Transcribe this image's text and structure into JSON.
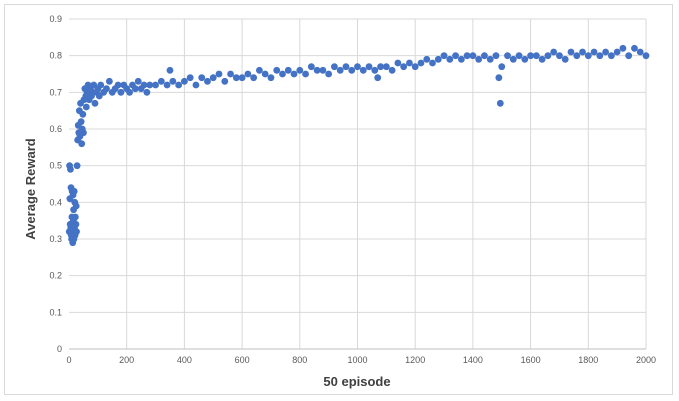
{
  "chart_data": {
    "type": "scatter",
    "title": "",
    "xlabel": "50 episode",
    "ylabel": "Average Reward",
    "xlim": [
      0,
      2000
    ],
    "ylim": [
      0,
      0.9
    ],
    "x_ticks": [
      "0",
      "200",
      "400",
      "600",
      "800",
      "1000",
      "1200",
      "1400",
      "1600",
      "1800",
      "2000"
    ],
    "y_ticks": [
      "0",
      "0.1",
      "0.2",
      "0.3",
      "0.4",
      "0.5",
      "0.6",
      "0.7",
      "0.8",
      "0.9"
    ],
    "grid": "vertical-and-horizontal",
    "legend": "none",
    "marker_color": "#4472c4",
    "series": [
      {
        "points": [
          [
            1,
            0.32
          ],
          [
            2,
            0.5
          ],
          [
            3,
            0.41
          ],
          [
            4,
            0.34
          ],
          [
            5,
            0.49
          ],
          [
            6,
            0.33
          ],
          [
            7,
            0.44
          ],
          [
            8,
            0.31
          ],
          [
            9,
            0.3
          ],
          [
            10,
            0.36
          ],
          [
            11,
            0.43
          ],
          [
            12,
            0.32
          ],
          [
            13,
            0.29
          ],
          [
            14,
            0.42
          ],
          [
            15,
            0.35
          ],
          [
            16,
            0.38
          ],
          [
            17,
            0.3
          ],
          [
            18,
            0.43
          ],
          [
            19,
            0.33
          ],
          [
            20,
            0.4
          ],
          [
            21,
            0.31
          ],
          [
            22,
            0.36
          ],
          [
            24,
            0.34
          ],
          [
            25,
            0.39
          ],
          [
            26,
            0.32
          ],
          [
            28,
            0.5
          ],
          [
            30,
            0.57
          ],
          [
            32,
            0.61
          ],
          [
            34,
            0.59
          ],
          [
            36,
            0.65
          ],
          [
            38,
            0.58
          ],
          [
            40,
            0.67
          ],
          [
            42,
            0.62
          ],
          [
            44,
            0.56
          ],
          [
            46,
            0.6
          ],
          [
            48,
            0.64
          ],
          [
            50,
            0.59
          ],
          [
            52,
            0.68
          ],
          [
            55,
            0.71
          ],
          [
            58,
            0.69
          ],
          [
            60,
            0.66
          ],
          [
            63,
            0.7
          ],
          [
            66,
            0.72
          ],
          [
            70,
            0.68
          ],
          [
            74,
            0.71
          ],
          [
            78,
            0.69
          ],
          [
            82,
            0.7
          ],
          [
            86,
            0.72
          ],
          [
            90,
            0.67
          ],
          [
            95,
            0.7
          ],
          [
            100,
            0.71
          ],
          [
            105,
            0.69
          ],
          [
            110,
            0.72
          ],
          [
            120,
            0.7
          ],
          [
            130,
            0.71
          ],
          [
            140,
            0.73
          ],
          [
            150,
            0.7
          ],
          [
            160,
            0.71
          ],
          [
            170,
            0.72
          ],
          [
            180,
            0.7
          ],
          [
            190,
            0.72
          ],
          [
            200,
            0.71
          ],
          [
            210,
            0.7
          ],
          [
            220,
            0.72
          ],
          [
            230,
            0.71
          ],
          [
            240,
            0.73
          ],
          [
            250,
            0.71
          ],
          [
            260,
            0.72
          ],
          [
            270,
            0.7
          ],
          [
            280,
            0.72
          ],
          [
            300,
            0.72
          ],
          [
            320,
            0.73
          ],
          [
            340,
            0.72
          ],
          [
            350,
            0.76
          ],
          [
            360,
            0.73
          ],
          [
            380,
            0.72
          ],
          [
            400,
            0.73
          ],
          [
            420,
            0.74
          ],
          [
            440,
            0.72
          ],
          [
            460,
            0.74
          ],
          [
            480,
            0.73
          ],
          [
            500,
            0.74
          ],
          [
            520,
            0.75
          ],
          [
            540,
            0.73
          ],
          [
            560,
            0.75
          ],
          [
            580,
            0.74
          ],
          [
            600,
            0.74
          ],
          [
            620,
            0.75
          ],
          [
            640,
            0.74
          ],
          [
            660,
            0.76
          ],
          [
            680,
            0.75
          ],
          [
            700,
            0.74
          ],
          [
            720,
            0.76
          ],
          [
            740,
            0.75
          ],
          [
            760,
            0.76
          ],
          [
            780,
            0.75
          ],
          [
            800,
            0.76
          ],
          [
            820,
            0.75
          ],
          [
            840,
            0.77
          ],
          [
            860,
            0.76
          ],
          [
            880,
            0.76
          ],
          [
            900,
            0.75
          ],
          [
            920,
            0.77
          ],
          [
            940,
            0.76
          ],
          [
            960,
            0.77
          ],
          [
            980,
            0.76
          ],
          [
            1000,
            0.77
          ],
          [
            1020,
            0.76
          ],
          [
            1040,
            0.77
          ],
          [
            1060,
            0.76
          ],
          [
            1070,
            0.74
          ],
          [
            1080,
            0.77
          ],
          [
            1100,
            0.77
          ],
          [
            1120,
            0.76
          ],
          [
            1140,
            0.78
          ],
          [
            1160,
            0.77
          ],
          [
            1180,
            0.78
          ],
          [
            1200,
            0.77
          ],
          [
            1220,
            0.78
          ],
          [
            1240,
            0.79
          ],
          [
            1260,
            0.78
          ],
          [
            1280,
            0.79
          ],
          [
            1300,
            0.8
          ],
          [
            1320,
            0.79
          ],
          [
            1340,
            0.8
          ],
          [
            1360,
            0.79
          ],
          [
            1380,
            0.8
          ],
          [
            1400,
            0.8
          ],
          [
            1420,
            0.79
          ],
          [
            1440,
            0.8
          ],
          [
            1460,
            0.79
          ],
          [
            1480,
            0.8
          ],
          [
            1490,
            0.74
          ],
          [
            1495,
            0.67
          ],
          [
            1500,
            0.77
          ],
          [
            1520,
            0.8
          ],
          [
            1540,
            0.79
          ],
          [
            1560,
            0.8
          ],
          [
            1580,
            0.79
          ],
          [
            1600,
            0.8
          ],
          [
            1620,
            0.8
          ],
          [
            1640,
            0.79
          ],
          [
            1660,
            0.8
          ],
          [
            1680,
            0.81
          ],
          [
            1700,
            0.8
          ],
          [
            1720,
            0.79
          ],
          [
            1740,
            0.81
          ],
          [
            1760,
            0.8
          ],
          [
            1780,
            0.81
          ],
          [
            1800,
            0.8
          ],
          [
            1820,
            0.81
          ],
          [
            1840,
            0.8
          ],
          [
            1860,
            0.81
          ],
          [
            1880,
            0.8
          ],
          [
            1900,
            0.81
          ],
          [
            1920,
            0.82
          ],
          [
            1940,
            0.8
          ],
          [
            1960,
            0.82
          ],
          [
            1980,
            0.81
          ],
          [
            2000,
            0.8
          ]
        ]
      }
    ]
  }
}
